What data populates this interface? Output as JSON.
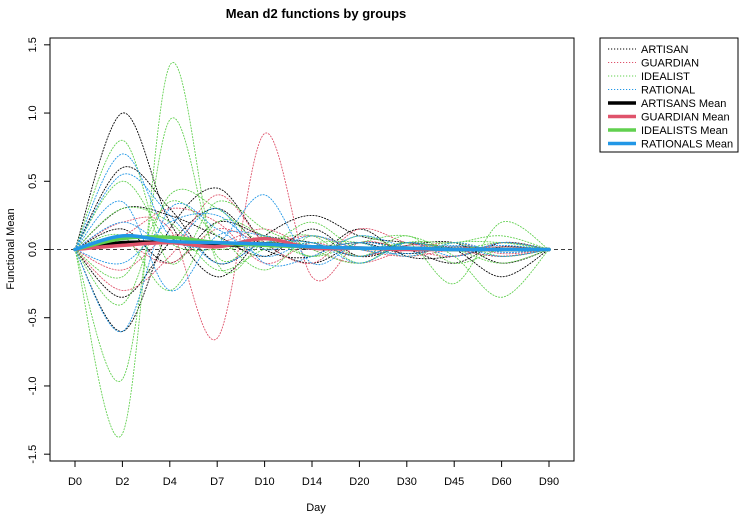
{
  "chart_data": {
    "type": "line",
    "title": "Mean d2 functions by groups",
    "xlabel": "Day",
    "ylabel": "Functional Mean",
    "categories": [
      "D0",
      "D2",
      "D4",
      "D7",
      "D10",
      "D14",
      "D20",
      "D30",
      "D45",
      "D60",
      "D90"
    ],
    "ylim": [
      -1.55,
      1.55
    ],
    "yticks": [
      -1.5,
      -1.0,
      -0.5,
      0.0,
      0.5,
      1.0,
      1.5
    ],
    "ytick_labels": [
      "-1.5",
      "-1.0",
      "-0.5",
      "0.0",
      "0.5",
      "1.0",
      "1.5"
    ],
    "reference_line": 0,
    "legend_position": "right-outside",
    "legend": [
      {
        "label": "ARTISAN",
        "color": "#000000",
        "style": "dotted"
      },
      {
        "label": "GUARDIAN",
        "color": "#DF536B",
        "style": "dotted"
      },
      {
        "label": "IDEALIST",
        "color": "#61D04F",
        "style": "dotted"
      },
      {
        "label": "RATIONAL",
        "color": "#2297E6",
        "style": "dotted"
      },
      {
        "label": "ARTISANS Mean",
        "color": "#000000",
        "style": "solid"
      },
      {
        "label": "GUARDIAN Mean",
        "color": "#DF536B",
        "style": "solid"
      },
      {
        "label": "IDEALISTS Mean",
        "color": "#61D04F",
        "style": "solid"
      },
      {
        "label": "RATIONALS Mean",
        "color": "#2297E6",
        "style": "solid"
      }
    ],
    "series": [
      {
        "group": "ARTISAN",
        "kind": "individual",
        "color": "#000000",
        "values": [
          0,
          1.0,
          0.2,
          -0.2,
          0.1,
          0.25,
          0.1,
          0.05,
          0.0,
          -0.2,
          0
        ]
      },
      {
        "group": "ARTISAN",
        "kind": "individual",
        "color": "#000000",
        "values": [
          0,
          -0.6,
          0.15,
          0.45,
          0.05,
          -0.1,
          0.05,
          0.0,
          -0.1,
          0.05,
          0
        ]
      },
      {
        "group": "ARTISAN",
        "kind": "individual",
        "color": "#000000",
        "values": [
          0,
          0.3,
          0.25,
          0.1,
          -0.05,
          0.15,
          -0.05,
          0.03,
          0.05,
          -0.1,
          0
        ]
      },
      {
        "group": "ARTISAN",
        "kind": "individual",
        "color": "#000000",
        "values": [
          0,
          -0.35,
          0.05,
          0.3,
          0.0,
          -0.05,
          0.15,
          -0.05,
          -0.05,
          0.02,
          0
        ]
      },
      {
        "group": "ARTISAN",
        "kind": "individual",
        "color": "#000000",
        "values": [
          0,
          0.15,
          -0.1,
          0.2,
          0.1,
          0.05,
          -0.05,
          0.05,
          0.0,
          -0.05,
          0
        ]
      },
      {
        "group": "ARTISAN",
        "kind": "individual",
        "color": "#000000",
        "values": [
          0,
          0.6,
          0.3,
          -0.1,
          0.05,
          0.0,
          0.05,
          -0.03,
          0.02,
          0.0,
          0
        ]
      },
      {
        "group": "GUARDIAN",
        "kind": "individual",
        "color": "#DF536B",
        "values": [
          0,
          0.2,
          0.15,
          -0.65,
          0.85,
          -0.2,
          0.05,
          0.0,
          -0.05,
          0.05,
          0
        ]
      },
      {
        "group": "GUARDIAN",
        "kind": "individual",
        "color": "#DF536B",
        "values": [
          0,
          -0.3,
          -0.05,
          0.4,
          0.05,
          -0.1,
          0.15,
          0.05,
          0.0,
          -0.05,
          0
        ]
      },
      {
        "group": "GUARDIAN",
        "kind": "individual",
        "color": "#DF536B",
        "values": [
          0,
          0.1,
          0.3,
          0.2,
          -0.1,
          0.05,
          -0.05,
          0.03,
          0.02,
          0.0,
          0
        ]
      },
      {
        "group": "GUARDIAN",
        "kind": "individual",
        "color": "#DF536B",
        "values": [
          0,
          -0.15,
          0.1,
          0.05,
          0.15,
          0.0,
          -0.1,
          0.0,
          0.05,
          -0.03,
          0
        ]
      },
      {
        "group": "GUARDIAN",
        "kind": "individual",
        "color": "#DF536B",
        "values": [
          0,
          0.05,
          -0.1,
          0.15,
          0.05,
          0.1,
          0.0,
          -0.05,
          0.0,
          0.02,
          0
        ]
      },
      {
        "group": "IDEALIST",
        "kind": "individual",
        "color": "#61D04F",
        "values": [
          0,
          -1.35,
          1.35,
          -0.1,
          0.05,
          0.1,
          -0.1,
          0.05,
          -0.25,
          0.2,
          0
        ]
      },
      {
        "group": "IDEALIST",
        "kind": "individual",
        "color": "#61D04F",
        "values": [
          0,
          -0.95,
          0.95,
          -0.05,
          0.1,
          -0.05,
          0.05,
          0.1,
          -0.05,
          -0.35,
          0
        ]
      },
      {
        "group": "IDEALIST",
        "kind": "individual",
        "color": "#61D04F",
        "values": [
          0,
          0.8,
          -0.1,
          0.35,
          0.15,
          0.0,
          -0.1,
          0.05,
          0.05,
          0.1,
          0
        ]
      },
      {
        "group": "IDEALIST",
        "kind": "individual",
        "color": "#61D04F",
        "values": [
          0,
          -0.4,
          0.4,
          0.3,
          0.05,
          0.2,
          0.0,
          0.05,
          0.0,
          -0.1,
          0
        ]
      },
      {
        "group": "IDEALIST",
        "kind": "individual",
        "color": "#61D04F",
        "values": [
          0,
          0.3,
          0.2,
          -0.15,
          0.0,
          0.05,
          0.05,
          -0.05,
          0.05,
          0.05,
          0
        ]
      },
      {
        "group": "IDEALIST",
        "kind": "individual",
        "color": "#61D04F",
        "values": [
          0,
          -0.2,
          0.35,
          0.1,
          -0.15,
          0.1,
          -0.05,
          0.1,
          -0.1,
          0.0,
          0
        ]
      },
      {
        "group": "IDEALIST",
        "kind": "individual",
        "color": "#61D04F",
        "values": [
          0,
          0.1,
          -0.3,
          0.2,
          0.1,
          -0.05,
          0.1,
          0.0,
          0.05,
          -0.05,
          0
        ]
      },
      {
        "group": "IDEALIST",
        "kind": "individual",
        "color": "#61D04F",
        "values": [
          0,
          0.5,
          0.05,
          0.0,
          0.05,
          0.05,
          -0.05,
          0.05,
          0.0,
          0.05,
          0
        ]
      },
      {
        "group": "RATIONAL",
        "kind": "individual",
        "color": "#2297E6",
        "values": [
          0,
          0.7,
          0.1,
          0.05,
          0.4,
          -0.1,
          0.05,
          0.0,
          0.03,
          0.0,
          0
        ]
      },
      {
        "group": "RATIONAL",
        "kind": "individual",
        "color": "#2297E6",
        "values": [
          0,
          -0.6,
          0.3,
          0.15,
          -0.05,
          0.05,
          -0.1,
          0.05,
          -0.05,
          0.05,
          0
        ]
      },
      {
        "group": "RATIONAL",
        "kind": "individual",
        "color": "#2297E6",
        "values": [
          0,
          0.35,
          -0.3,
          0.1,
          0.1,
          0.0,
          0.05,
          -0.05,
          0.05,
          -0.02,
          0
        ]
      },
      {
        "group": "RATIONAL",
        "kind": "individual",
        "color": "#2297E6",
        "values": [
          0,
          0.55,
          0.25,
          -0.1,
          0.05,
          0.05,
          -0.05,
          0.05,
          0.0,
          0.03,
          0
        ]
      },
      {
        "group": "RATIONAL",
        "kind": "individual",
        "color": "#2297E6",
        "values": [
          0,
          -0.1,
          0.2,
          0.25,
          0.0,
          0.1,
          0.0,
          -0.03,
          0.02,
          -0.05,
          0
        ]
      },
      {
        "group": "RATIONAL",
        "kind": "individual",
        "color": "#2297E6",
        "values": [
          0,
          0.2,
          0.05,
          0.3,
          -0.1,
          -0.05,
          0.1,
          0.02,
          0.0,
          0.0,
          0
        ]
      },
      {
        "group": "ARTISANS Mean",
        "kind": "mean",
        "color": "#000000",
        "values": [
          0,
          0.05,
          0.05,
          0.03,
          0.04,
          0.02,
          0.01,
          0.01,
          0.0,
          0.0,
          0
        ]
      },
      {
        "group": "GUARDIAN Mean",
        "kind": "mean",
        "color": "#DF536B",
        "values": [
          0,
          0.03,
          0.05,
          0.02,
          0.08,
          0.01,
          0.01,
          0.0,
          0.0,
          0.0,
          0
        ]
      },
      {
        "group": "IDEALISTS Mean",
        "kind": "mean",
        "color": "#61D04F",
        "values": [
          0,
          0.08,
          0.09,
          0.05,
          0.03,
          0.02,
          0.01,
          0.01,
          0.0,
          0.0,
          0
        ]
      },
      {
        "group": "RATIONALS Mean",
        "kind": "mean",
        "color": "#2297E6",
        "values": [
          0,
          0.1,
          0.06,
          0.05,
          0.04,
          0.02,
          0.01,
          0.01,
          0.0,
          0.0,
          0
        ]
      }
    ]
  }
}
